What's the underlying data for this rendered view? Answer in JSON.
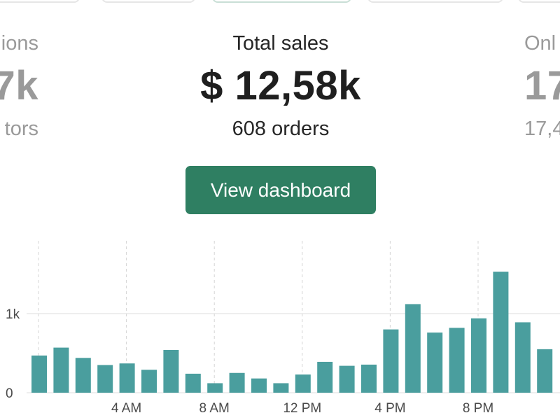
{
  "stats": {
    "left": {
      "title": "ions",
      "value": "7k",
      "sub": "tors"
    },
    "center": {
      "title": "Total sales",
      "value": "$ 12,58k",
      "sub": "608 orders"
    },
    "right": {
      "title": "Onl",
      "value": "17",
      "sub": "17,4"
    }
  },
  "dashboard_button": {
    "label": "View dashboard"
  },
  "colors": {
    "accent": "#2f7f62",
    "bar": "#4a9e9e"
  },
  "chart_data": {
    "type": "bar",
    "y_ticks": [
      {
        "label": "0",
        "value": 0
      },
      {
        "label": "1k",
        "value": 1000
      }
    ],
    "x_ticks": [
      {
        "label": "4 AM",
        "index": 4
      },
      {
        "label": "8 AM",
        "index": 8
      },
      {
        "label": "12 PM",
        "index": 12
      },
      {
        "label": "4 PM",
        "index": 16
      },
      {
        "label": "8 PM",
        "index": 20
      }
    ],
    "values": [
      470,
      570,
      440,
      350,
      370,
      290,
      540,
      240,
      120,
      250,
      180,
      120,
      230,
      390,
      340,
      355,
      800,
      1120,
      760,
      820,
      940,
      1530,
      890,
      550
    ],
    "ylim": [
      0,
      1900
    ],
    "grid": "dashed-vertical"
  }
}
